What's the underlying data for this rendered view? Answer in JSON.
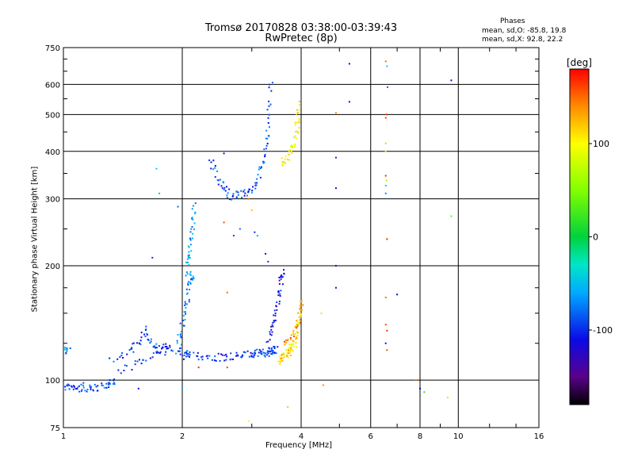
{
  "header": {
    "title": "Tromsø 20170828 03:38:00-03:39:43",
    "subtitle": "RwPretec (8p)"
  },
  "phases": {
    "title": "Phases",
    "line1": "mean, sd,O: -85.8, 19.8",
    "line2": "mean, sd,X:  92.8, 22.2"
  },
  "colorbar": {
    "label": "[deg]",
    "ticks": [
      100,
      0,
      -100
    ],
    "range": [
      -180,
      180
    ]
  },
  "chart_data": {
    "type": "scatter",
    "title": "Tromsø 20170828 03:38:00-03:39:43",
    "subtitle": "RwPretec (8p)",
    "xlabel": "Frequency [MHz]",
    "ylabel": "Stationary phase Virtual Height [km]",
    "xscale": "log",
    "yscale": "log",
    "xlim": [
      1,
      16
    ],
    "ylim": [
      75,
      750
    ],
    "xticks": [
      1,
      2,
      4,
      6,
      8,
      10,
      16
    ],
    "yticks": [
      75,
      100,
      200,
      300,
      400,
      500,
      600,
      750
    ],
    "grid": true,
    "color_by": "phase (deg)",
    "series": [
      {
        "segments": [
          {
            "f": [
              1.0,
              1.06,
              1.12,
              1.2,
              1.3,
              1.34
            ],
            "h": [
              96,
              95,
              96,
              95,
              97,
              100
            ],
            "phase": -90,
            "n": 60
          },
          {
            "f": [
              1.0,
              1.04
            ],
            "h": [
              119,
              121
            ],
            "phase": -70,
            "n": 10
          },
          {
            "f": [
              1.3,
              1.45,
              1.55,
              1.62,
              1.68,
              1.75,
              1.85,
              2.0,
              2.1
            ],
            "h": [
              113,
              118,
              124,
              138,
              124,
              120,
              122,
              118,
              117
            ],
            "phase": -95,
            "n": 70
          },
          {
            "f": [
              1.38,
              1.5,
              1.6,
              1.75,
              1.85
            ],
            "h": [
              104,
              110,
              112,
              118,
              120
            ],
            "phase": -100,
            "n": 25
          },
          {
            "f": [
              2.0,
              2.5,
              3.0,
              3.3,
              3.45
            ],
            "h": [
              116,
              115,
              117,
              118,
              121
            ],
            "phase": -95,
            "n": 100
          },
          {
            "f": [
              3.3,
              3.4,
              3.5,
              3.55,
              3.6
            ],
            "h": [
              125,
              140,
              160,
              180,
              195
            ],
            "phase": -110,
            "n": 45
          },
          {
            "f": [
              1.95,
              2.0,
              2.05,
              2.1,
              2.12
            ],
            "h": [
              120,
              140,
              160,
              180,
              190
            ],
            "phase": -70,
            "n": 45
          },
          {
            "f": [
              2.05,
              2.08,
              2.1,
              2.13,
              2.15
            ],
            "h": [
              190,
              210,
              230,
              260,
              290
            ],
            "phase": -60,
            "n": 35
          },
          {
            "f": [
              2.35,
              2.5,
              2.65,
              2.85,
              3.05,
              3.2,
              3.3,
              3.35
            ],
            "h": [
              380,
              330,
              305,
              308,
              325,
              370,
              450,
              620
            ],
            "phase": -90,
            "n": 90
          },
          {
            "f": [
              3.55,
              3.7,
              3.85,
              3.92,
              3.95
            ],
            "h": [
              375,
              390,
              420,
              470,
              545
            ],
            "phase": 100,
            "n": 45
          },
          {
            "f": [
              3.5,
              3.7,
              3.85,
              4.0
            ],
            "h": [
              112,
              118,
              125,
              155
            ],
            "phase": 110,
            "n": 70
          },
          {
            "f": [
              3.6,
              3.8,
              3.95,
              4.05
            ],
            "h": [
              125,
              130,
              140,
              165
            ],
            "phase": 140,
            "n": 30
          }
        ]
      }
    ],
    "scatter_points": [
      [
        1.72,
        360,
        -40
      ],
      [
        1.75,
        310,
        -50
      ],
      [
        1.68,
        210,
        -100
      ],
      [
        2.0,
        95,
        -60
      ],
      [
        1.95,
        286,
        -80
      ],
      [
        2.55,
        260,
        160
      ],
      [
        2.55,
        395,
        -110
      ],
      [
        2.7,
        240,
        -90
      ],
      [
        2.8,
        250,
        -80
      ],
      [
        3.05,
        245,
        -100
      ],
      [
        2.95,
        300,
        150
      ],
      [
        3.0,
        280,
        120
      ],
      [
        3.1,
        240,
        -60
      ],
      [
        3.25,
        215,
        -110
      ],
      [
        3.3,
        205,
        -100
      ],
      [
        4.9,
        505,
        140
      ],
      [
        4.9,
        385,
        -100
      ],
      [
        4.9,
        320,
        -110
      ],
      [
        4.9,
        200,
        -120
      ],
      [
        4.9,
        175,
        -110
      ],
      [
        5.3,
        680,
        -110
      ],
      [
        5.3,
        540,
        -110
      ],
      [
        6.55,
        690,
        150
      ],
      [
        6.6,
        670,
        -40
      ],
      [
        6.62,
        590,
        -80
      ],
      [
        6.55,
        490,
        160
      ],
      [
        6.58,
        500,
        170
      ],
      [
        6.55,
        420,
        120
      ],
      [
        6.55,
        400,
        110
      ],
      [
        6.55,
        345,
        170
      ],
      [
        6.58,
        335,
        60
      ],
      [
        6.55,
        325,
        -40
      ],
      [
        6.55,
        310,
        -70
      ],
      [
        6.6,
        235,
        170
      ],
      [
        6.55,
        165,
        150
      ],
      [
        6.55,
        140,
        160
      ],
      [
        6.6,
        135,
        170
      ],
      [
        6.55,
        125,
        -110
      ],
      [
        6.6,
        120,
        160
      ],
      [
        7.0,
        168,
        -110
      ],
      [
        7.8,
        100,
        150
      ],
      [
        8.0,
        95,
        -110
      ],
      [
        8.2,
        93,
        20
      ],
      [
        9.4,
        90,
        70
      ],
      [
        9.6,
        270,
        40
      ],
      [
        9.6,
        615,
        -110
      ],
      [
        3.7,
        85,
        120
      ],
      [
        2.95,
        78,
        100
      ],
      [
        4.55,
        97,
        140
      ],
      [
        4.5,
        150,
        110
      ],
      [
        1.55,
        95,
        -110
      ],
      [
        2.2,
        108,
        170
      ],
      [
        2.6,
        108,
        160
      ],
      [
        2.6,
        170,
        150
      ]
    ]
  }
}
